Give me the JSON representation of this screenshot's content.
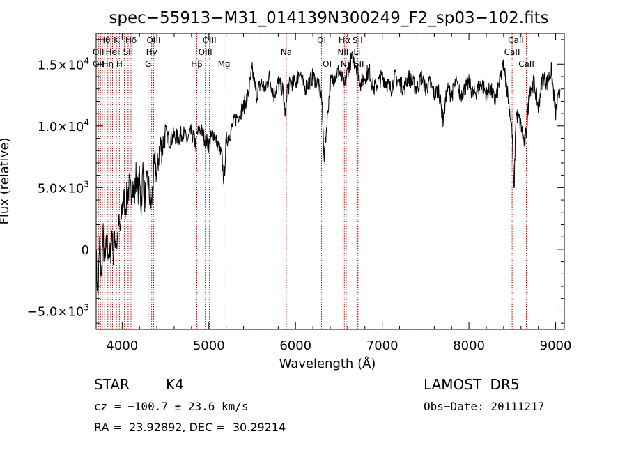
{
  "chart_data": {
    "type": "line",
    "title": "spec−55913−M31_014139N300249_F2_sp03−102.fits",
    "xlabel": "Wavelength (Å)",
    "ylabel": "Flux (relative)",
    "xlim": [
      3700,
      9100
    ],
    "ylim": [
      -6500,
      17500
    ],
    "xticks": [
      {
        "value": 4000,
        "label": "4000"
      },
      {
        "value": 5000,
        "label": "5000"
      },
      {
        "value": 6000,
        "label": "6000"
      },
      {
        "value": 7000,
        "label": "7000"
      },
      {
        "value": 8000,
        "label": "8000"
      },
      {
        "value": 9000,
        "label": "9000"
      }
    ],
    "yticks": [
      {
        "value": -5000,
        "label": "−5.0×10",
        "exp": "3"
      },
      {
        "value": 0,
        "label": "0",
        "exp": ""
      },
      {
        "value": 5000,
        "label": "5.0×10",
        "exp": "3"
      },
      {
        "value": 10000,
        "label": "1.0×10",
        "exp": "4"
      },
      {
        "value": 15000,
        "label": "1.5×10",
        "exp": "4"
      }
    ],
    "x": [
      3700,
      3720,
      3740,
      3760,
      3780,
      3800,
      3820,
      3840,
      3860,
      3880,
      3900,
      3920,
      3940,
      3960,
      3980,
      4000,
      4020,
      4040,
      4060,
      4080,
      4100,
      4120,
      4140,
      4160,
      4180,
      4200,
      4220,
      4240,
      4260,
      4280,
      4300,
      4320,
      4340,
      4360,
      4380,
      4400,
      4420,
      4440,
      4460,
      4480,
      4500,
      4550,
      4600,
      4650,
      4700,
      4750,
      4800,
      4850,
      4860,
      4900,
      4950,
      5000,
      5050,
      5100,
      5150,
      5175,
      5200,
      5250,
      5300,
      5350,
      5400,
      5450,
      5500,
      5550,
      5600,
      5650,
      5700,
      5750,
      5800,
      5850,
      5890,
      5900,
      5950,
      6000,
      6050,
      6100,
      6150,
      6200,
      6250,
      6300,
      6330,
      6400,
      6450,
      6500,
      6550,
      6563,
      6600,
      6650,
      6700,
      6750,
      6800,
      6850,
      6900,
      6950,
      7000,
      7050,
      7100,
      7150,
      7200,
      7250,
      7300,
      7350,
      7400,
      7450,
      7500,
      7550,
      7600,
      7650,
      7700,
      7750,
      7800,
      7850,
      7900,
      7950,
      8000,
      8050,
      8100,
      8150,
      8200,
      8250,
      8300,
      8350,
      8400,
      8450,
      8498,
      8520,
      8542,
      8580,
      8600,
      8640,
      8662,
      8700,
      8750,
      8800,
      8850,
      8900,
      8950,
      9000,
      9050
    ],
    "values": [
      -500,
      -4000,
      500,
      -2500,
      1000,
      -1500,
      500,
      0,
      -1000,
      1500,
      -500,
      1000,
      500,
      2000,
      1500,
      3500,
      4000,
      3500,
      4500,
      5000,
      4500,
      5500,
      4000,
      6000,
      4500,
      5500,
      3500,
      6500,
      4000,
      5000,
      5500,
      4000,
      3500,
      6000,
      7000,
      6000,
      7500,
      8500,
      8000,
      9000,
      9500,
      8800,
      9200,
      9000,
      9500,
      8800,
      9500,
      8500,
      9200,
      9800,
      9000,
      8500,
      9500,
      8500,
      7500,
      5500,
      8800,
      9500,
      10500,
      11000,
      11500,
      12500,
      14500,
      12500,
      13500,
      13000,
      14000,
      12500,
      13500,
      13000,
      10500,
      13000,
      13500,
      13500,
      14500,
      13000,
      13500,
      14000,
      13500,
      12500,
      7500,
      13500,
      14000,
      14500,
      13500,
      13000,
      14500,
      15500,
      15000,
      13500,
      14000,
      14500,
      13000,
      13500,
      14000,
      13500,
      13000,
      14000,
      13500,
      13000,
      14000,
      13500,
      13000,
      14000,
      13000,
      13500,
      12500,
      13000,
      10500,
      13000,
      12500,
      13500,
      12500,
      13000,
      13500,
      12500,
      13000,
      13500,
      12500,
      13000,
      12000,
      13500,
      15000,
      12500,
      9500,
      4500,
      11000,
      10500,
      10000,
      8500,
      9500,
      13000,
      13500,
      11500,
      14000,
      13500,
      14500,
      11000,
      13000
    ],
    "lines": [
      {
        "x": 3726
      },
      {
        "x": 3750
      },
      {
        "x": 3771
      },
      {
        "x": 3798
      },
      {
        "x": 3835
      },
      {
        "x": 3869
      },
      {
        "x": 3889
      },
      {
        "x": 3934
      },
      {
        "x": 3968
      },
      {
        "x": 4026
      },
      {
        "x": 4069
      },
      {
        "x": 4102
      },
      {
        "x": 4300
      },
      {
        "x": 4340
      },
      {
        "x": 4363
      },
      {
        "x": 4861
      },
      {
        "x": 4959
      },
      {
        "x": 5007
      },
      {
        "x": 5175
      },
      {
        "x": 5893
      },
      {
        "x": 6300
      },
      {
        "x": 6364
      },
      {
        "x": 6548
      },
      {
        "x": 6563
      },
      {
        "x": 6584
      },
      {
        "x": 6708
      },
      {
        "x": 6716
      },
      {
        "x": 6731
      },
      {
        "x": 8498
      },
      {
        "x": 8542
      },
      {
        "x": 8662
      }
    ],
    "line_labels": [
      {
        "text": "Hθ",
        "x": 3798,
        "row": 1
      },
      {
        "text": "K",
        "x": 3934,
        "row": 1
      },
      {
        "text": "Hδ",
        "x": 4102,
        "row": 1
      },
      {
        "text": "OIII",
        "x": 4363,
        "row": 1
      },
      {
        "text": "OIII",
        "x": 5007,
        "row": 1
      },
      {
        "text": "OI",
        "x": 6300,
        "row": 1
      },
      {
        "text": "Hα",
        "x": 6563,
        "row": 1
      },
      {
        "text": "SII",
        "x": 6716,
        "row": 1
      },
      {
        "text": "CaII",
        "x": 8542,
        "row": 1
      },
      {
        "text": "OII",
        "x": 3726,
        "row": 2
      },
      {
        "text": "HeI",
        "x": 3889,
        "row": 2
      },
      {
        "text": "SII",
        "x": 4069,
        "row": 2
      },
      {
        "text": "Hγ",
        "x": 4340,
        "row": 2
      },
      {
        "text": "OIII",
        "x": 4959,
        "row": 2
      },
      {
        "text": "Na",
        "x": 5893,
        "row": 2
      },
      {
        "text": "NII",
        "x": 6548,
        "row": 2
      },
      {
        "text": "Li",
        "x": 6708,
        "row": 2
      },
      {
        "text": "CaII",
        "x": 8498,
        "row": 2
      },
      {
        "text": "OII",
        "x": 3726,
        "row": 3
      },
      {
        "text": "Hη",
        "x": 3835,
        "row": 3
      },
      {
        "text": "H",
        "x": 3968,
        "row": 3
      },
      {
        "text": "G",
        "x": 4300,
        "row": 3
      },
      {
        "text": "Hβ",
        "x": 4861,
        "row": 3
      },
      {
        "text": "Mg",
        "x": 5175,
        "row": 3
      },
      {
        "text": "OI",
        "x": 6364,
        "row": 3
      },
      {
        "text": "NII",
        "x": 6584,
        "row": 3
      },
      {
        "text": "SII",
        "x": 6731,
        "row": 3
      },
      {
        "text": "CaII",
        "x": 8662,
        "row": 3
      }
    ],
    "grid": false,
    "line_color": "#000000",
    "marker_color": "#c00000"
  },
  "info": {
    "class": "STAR",
    "subclass": "K4",
    "survey": "LAMOST DR5",
    "cz": "cz = −100.7 ± 23.6 km/s",
    "obs_date": "Obs−Date: 20111217",
    "coords": "RA =  23.92892, DEC =  30.29214"
  }
}
